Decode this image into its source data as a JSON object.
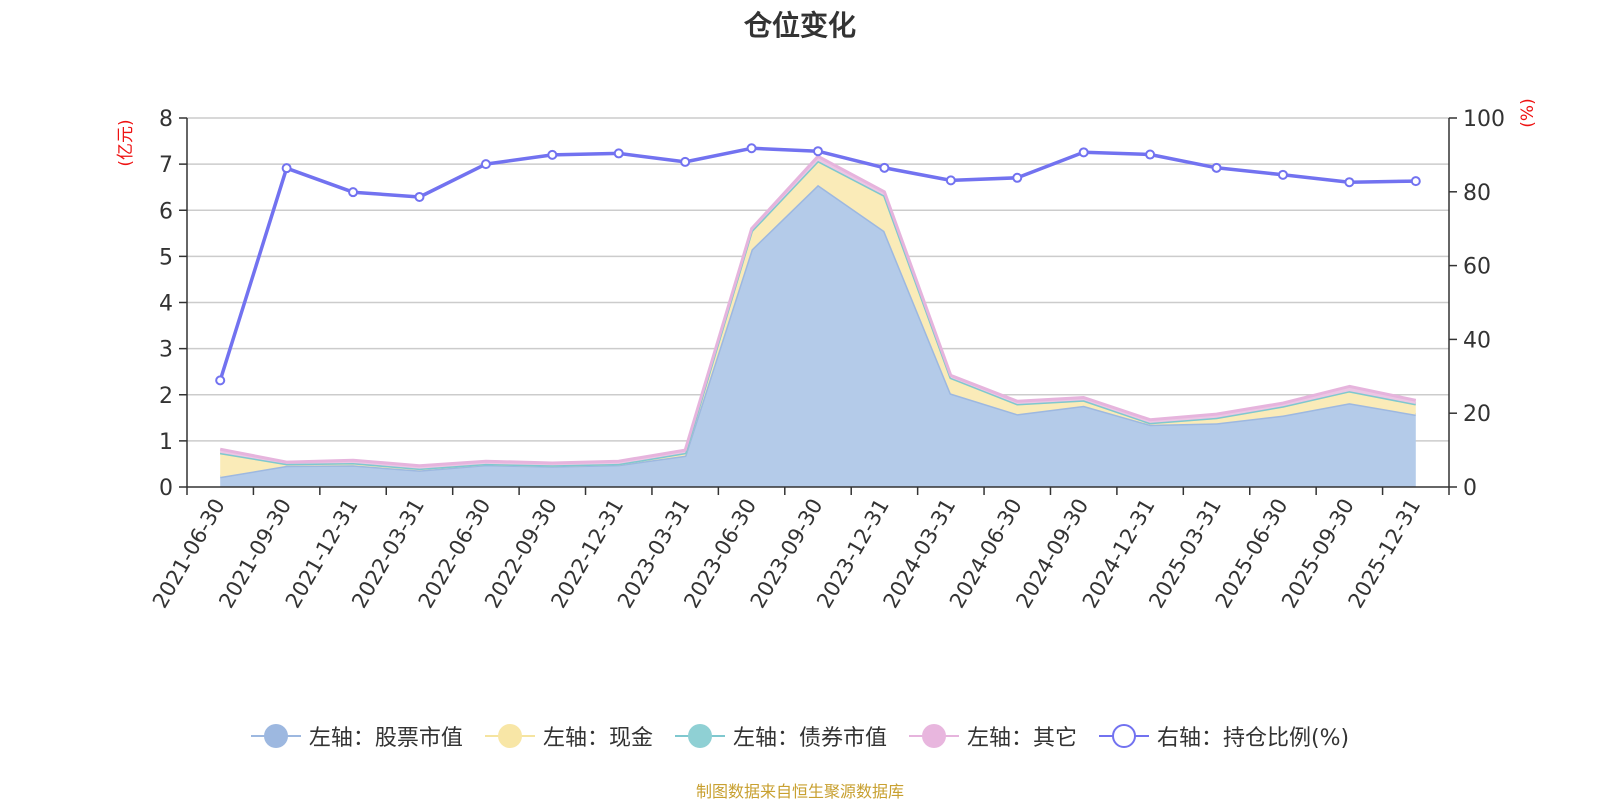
{
  "chart_data": {
    "type": "area",
    "title": "仓位变化",
    "left_axis_label": "(亿元)",
    "right_axis_label": "(%)",
    "left_ylim": [
      0,
      8
    ],
    "left_ticks": [
      "0",
      "1",
      "2",
      "3",
      "4",
      "5",
      "6",
      "7",
      "8"
    ],
    "right_ylim": [
      0,
      100
    ],
    "right_ticks": [
      "0",
      "20",
      "40",
      "60",
      "80",
      "100"
    ],
    "categories": [
      "2021-06-30",
      "2021-09-30",
      "2021-12-31",
      "2022-03-31",
      "2022-06-30",
      "2022-09-30",
      "2022-12-31",
      "2023-03-31",
      "2023-06-30",
      "2023-09-30",
      "2023-12-31",
      "2024-03-31",
      "2024-06-30",
      "2024-09-30",
      "2024-12-31",
      "2025-03-31",
      "2025-06-30",
      "2025-09-30",
      "2025-12-31"
    ],
    "stacked_series": [
      {
        "name": "左轴：股票市值",
        "axis": "left",
        "color": "#9db8e0",
        "fill": "#b4cbe9",
        "values": [
          0.22,
          0.46,
          0.47,
          0.36,
          0.48,
          0.45,
          0.48,
          0.68,
          5.15,
          6.55,
          5.55,
          2.03,
          1.58,
          1.76,
          1.35,
          1.38,
          1.55,
          1.82,
          1.57
        ]
      },
      {
        "name": "左轴：现金",
        "axis": "left",
        "color": "#f5e4a0",
        "fill": "#faebb8",
        "values": [
          0.52,
          0.04,
          0.05,
          0.04,
          0.02,
          0.02,
          0.02,
          0.06,
          0.4,
          0.52,
          0.77,
          0.34,
          0.22,
          0.12,
          0.04,
          0.12,
          0.2,
          0.26,
          0.23
        ]
      },
      {
        "name": "左轴：债券市值",
        "axis": "left",
        "color": "#7fc8cf",
        "fill": "#9ad4d8",
        "values": [
          0,
          0,
          0,
          0,
          0,
          0,
          0,
          0,
          0,
          0,
          0,
          0,
          0,
          0,
          0,
          0,
          0,
          0,
          0
        ]
      },
      {
        "name": "左轴：其它",
        "axis": "left",
        "color": "#e6b4dd",
        "fill": "#ecc6e4",
        "values": [
          0.08,
          0.04,
          0.06,
          0.06,
          0.06,
          0.05,
          0.06,
          0.06,
          0.05,
          0.1,
          0.08,
          0.05,
          0.06,
          0.06,
          0.07,
          0.08,
          0.07,
          0.1,
          0.08
        ]
      }
    ],
    "line_series": {
      "name": "右轴：持仓比例(%)",
      "axis": "right",
      "color": "#7272f0",
      "values": [
        28.9,
        86.4,
        79.9,
        78.6,
        87.5,
        90.0,
        90.4,
        88.1,
        91.8,
        91.0,
        86.5,
        83.1,
        83.8,
        90.7,
        90.1,
        86.5,
        84.6,
        82.6,
        82.9
      ]
    }
  },
  "footer": "制图数据来自恒生聚源数据库"
}
